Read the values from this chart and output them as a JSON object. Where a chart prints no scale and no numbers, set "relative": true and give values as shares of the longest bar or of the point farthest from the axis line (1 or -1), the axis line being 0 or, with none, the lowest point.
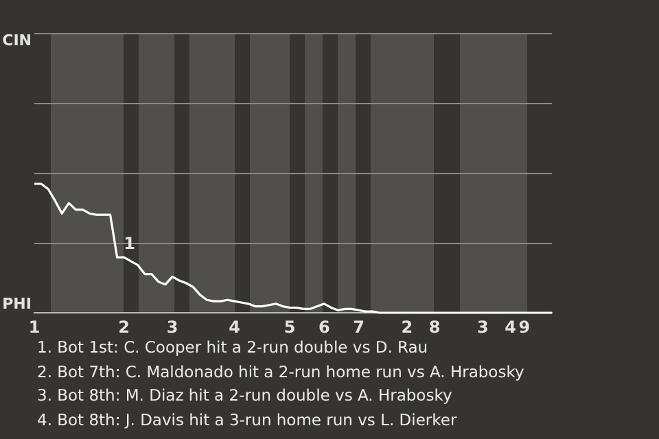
{
  "chart_data": {
    "type": "line",
    "relative": true,
    "categories": [
      "1",
      null,
      null,
      null,
      null,
      null,
      null,
      null,
      null,
      null,
      null,
      null,
      null,
      "2",
      null,
      null,
      null,
      null,
      null,
      null,
      "3",
      null,
      null,
      null,
      null,
      null,
      null,
      null,
      null,
      "4",
      null,
      null,
      null,
      null,
      null,
      null,
      null,
      "5",
      null,
      null,
      null,
      null,
      "6",
      null,
      null,
      null,
      null,
      "7",
      null,
      null,
      null,
      null,
      null,
      null,
      "2",
      null,
      null,
      null,
      "8",
      null,
      null,
      null,
      null,
      null,
      null,
      "3",
      null,
      null,
      null,
      "4",
      null,
      "9",
      null,
      null,
      null,
      null
    ],
    "series": [
      {
        "color": "#ffffff",
        "values": [
          1,
          1,
          0.96,
          0.87,
          0.77,
          0.85,
          0.8,
          0.8,
          0.77,
          0.76,
          0.76,
          0.76,
          0.43,
          0.43,
          0.4,
          0.37,
          0.3,
          0.3,
          0.24,
          0.22,
          0.28,
          0.25,
          0.23,
          0.2,
          0.14,
          0.1,
          0.09,
          0.09,
          0.1,
          0.09,
          0.08,
          0.07,
          0.05,
          0.05,
          0.06,
          0.07,
          0.05,
          0.04,
          0.04,
          0.03,
          0.03,
          0.05,
          0.07,
          0.04,
          0.02,
          0.03,
          0.03,
          0.02,
          0.01,
          0.01,
          0,
          0,
          0,
          0,
          0,
          0,
          0,
          0,
          0,
          0,
          0,
          0,
          0,
          0,
          0,
          0,
          0,
          0,
          0,
          0,
          0,
          0,
          0,
          0,
          0,
          0
        ]
      }
    ],
    "legend": false,
    "marker": "none",
    "line_style": "solid",
    "ref_lines": [
      {
        "axis": "y",
        "value": 0.54,
        "color": "#8a8986"
      },
      {
        "axis": "y",
        "value": 1.09,
        "color": "#8a8986"
      },
      {
        "axis": "y",
        "value": 1.63,
        "color": "#8a8986"
      }
    ],
    "annotations": [
      {
        "text": "1",
        "x": "2",
        "y": 0.43
      },
      "CIN",
      "PHI",
      "1. Bot 1st: C. Cooper hit a 2-run double vs D. Rau",
      "2. Bot 7th: C. Maldonado hit a 2-run home run vs A. Hrabosky",
      "3. Bot 8th: M. Diaz hit a 2-run double vs A. Hrabosky",
      "4. Bot 8th: J. Davis hit a 3-run home run vs L. Dierker"
    ]
  }
}
